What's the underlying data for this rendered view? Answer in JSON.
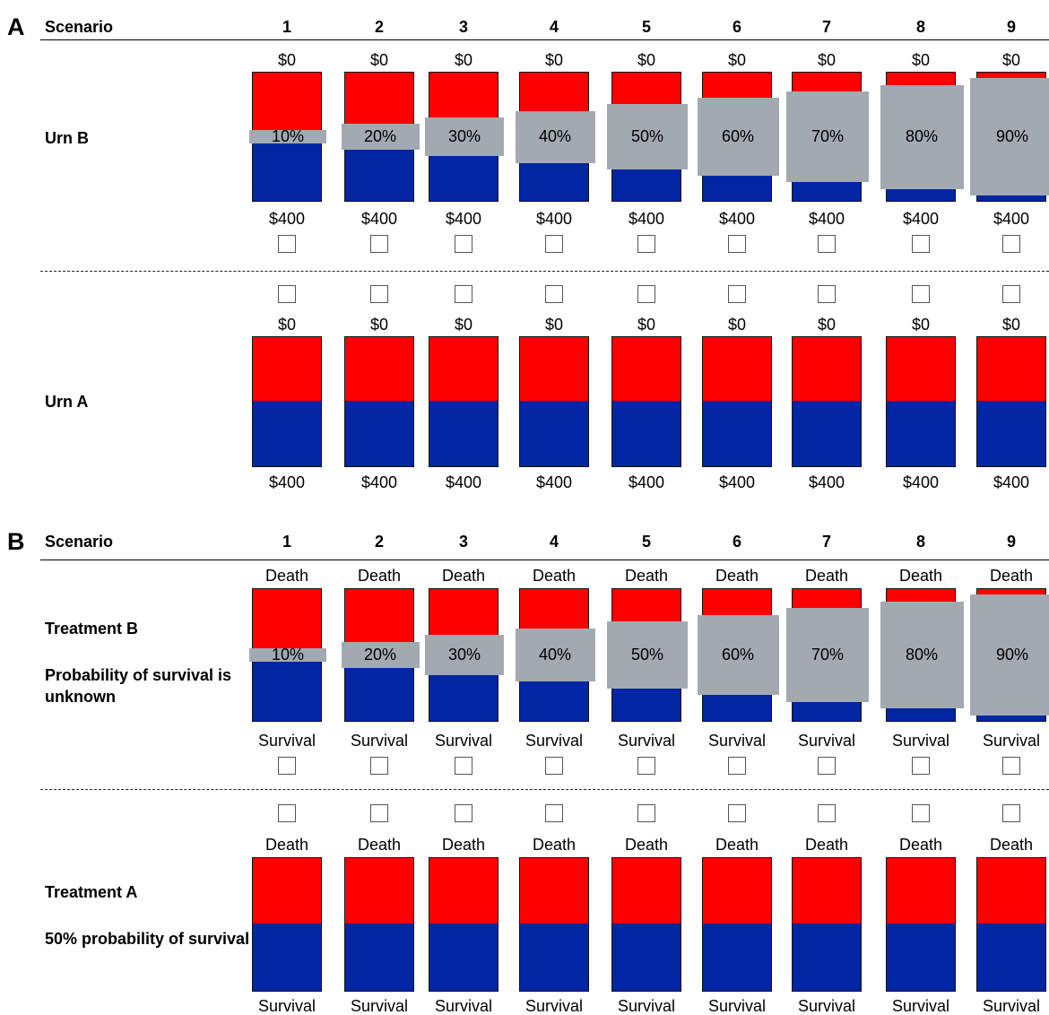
{
  "scenarios": [
    "1",
    "2",
    "3",
    "4",
    "5",
    "6",
    "7",
    "8",
    "9"
  ],
  "percents": [
    "10%",
    "20%",
    "30%",
    "40%",
    "50%",
    "60%",
    "70%",
    "80%",
    "90%"
  ],
  "colors": {
    "red": "#ff0000",
    "blue": "#0026a3",
    "gray_cover": "#a3a9b1"
  },
  "panel_a": {
    "letter": "A",
    "header": "Scenario",
    "urn_b": {
      "label": "Urn B",
      "top_text": "$0",
      "bottom_text": "$400",
      "unknown_fraction": [
        0.1,
        0.2,
        0.3,
        0.4,
        0.5,
        0.6,
        0.7,
        0.8,
        0.9
      ]
    },
    "urn_a": {
      "label": "Urn A",
      "top_text": "$0",
      "bottom_text": "$400",
      "red_fraction": 0.5
    }
  },
  "panel_b": {
    "letter": "B",
    "header": "Scenario",
    "treatment_b": {
      "label": "Treatment B",
      "sublabel": "Probability of survival is unknown",
      "top_text": "Death",
      "bottom_text": "Survival",
      "unknown_fraction": [
        0.1,
        0.2,
        0.3,
        0.4,
        0.5,
        0.6,
        0.7,
        0.8,
        0.9
      ]
    },
    "treatment_a": {
      "label": "Treatment A",
      "sublabel": "50% probability of survival",
      "top_text": "Death",
      "bottom_text": "Survival",
      "red_fraction": 0.5
    }
  }
}
